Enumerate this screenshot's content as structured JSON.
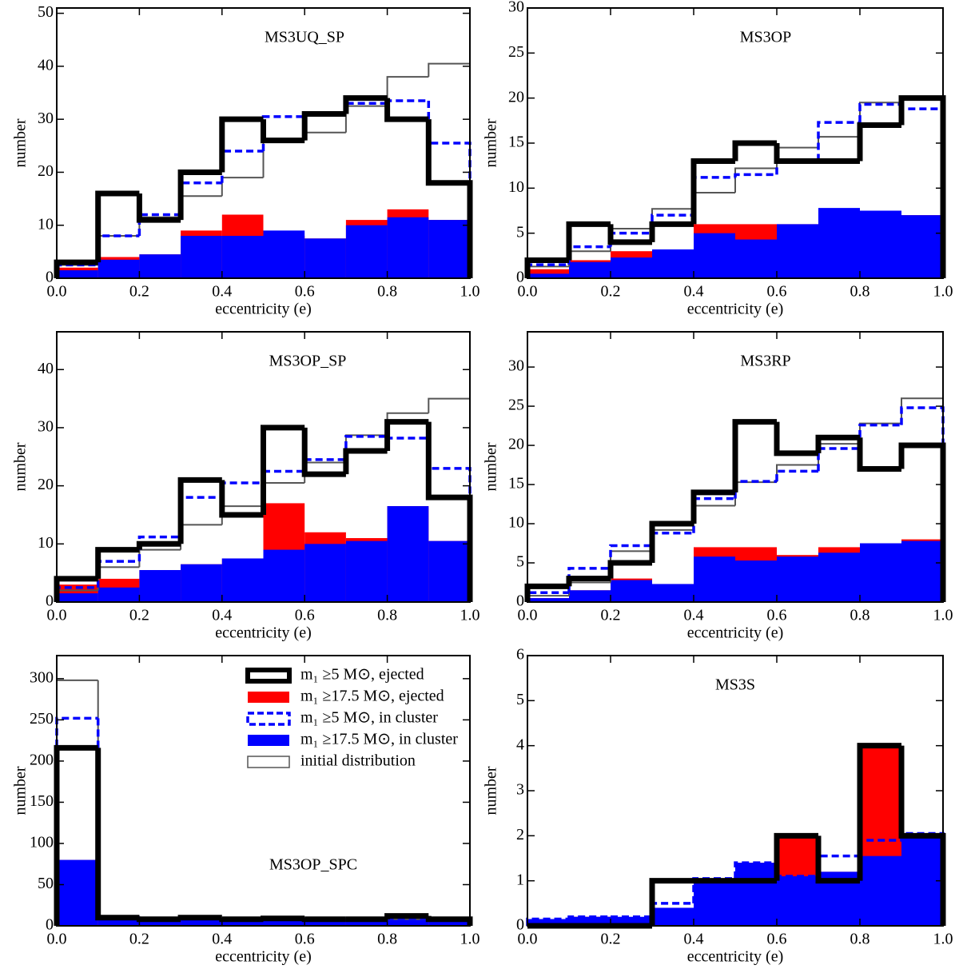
{
  "chart_data": [
    {
      "type": "histogram",
      "title": "MS3UQ_SP",
      "xlabel": "eccentricity (e)",
      "ylabel": "number",
      "bins": [
        0,
        0.1,
        0.2,
        0.3,
        0.4,
        0.5,
        0.6,
        0.7,
        0.8,
        0.9,
        1
      ],
      "xlim": [
        0,
        1
      ],
      "xticks": [
        {
          "value": 0,
          "label": "0.0"
        },
        0.2,
        0.4,
        0.6,
        0.8,
        {
          "value": 1,
          "label": "1.0"
        }
      ],
      "ylim": [
        0,
        51
      ],
      "yticks": [
        0,
        10,
        20,
        30,
        40,
        50
      ],
      "series": [
        {
          "color": "#000000",
          "style": "thick",
          "values": [
            3,
            16,
            11,
            20,
            30,
            26,
            31,
            34,
            30,
            18
          ]
        },
        {
          "color": "#ff0000",
          "style": "filled",
          "values": [
            2,
            4,
            4.5,
            9,
            12,
            8,
            7.5,
            11,
            13,
            11
          ]
        },
        {
          "color": "#0000ff",
          "style": "dashed",
          "values": [
            2.5,
            8,
            12,
            18,
            24,
            30.5,
            31,
            33,
            33.5,
            25.5
          ]
        },
        {
          "color": "#0000ff",
          "style": "filled",
          "values": [
            1.5,
            3.5,
            4.5,
            8,
            8,
            9,
            7.5,
            10,
            11.5,
            11
          ]
        },
        {
          "color": "#555555",
          "style": "thin",
          "values": [
            2.5,
            8,
            11.5,
            15.5,
            19,
            26,
            27.5,
            32.5,
            38,
            40.5
          ]
        }
      ]
    },
    {
      "type": "histogram",
      "title": "MS3OP",
      "xlabel": "eccentricity (e)",
      "ylabel": "number",
      "bins": [
        0,
        0.1,
        0.2,
        0.3,
        0.4,
        0.5,
        0.6,
        0.7,
        0.8,
        0.9,
        1
      ],
      "xlim": [
        0,
        1
      ],
      "xticks": [
        {
          "value": 0,
          "label": "0.0"
        },
        0.2,
        0.4,
        0.6,
        0.8,
        {
          "value": 1,
          "label": "1.0"
        }
      ],
      "ylim": [
        0,
        30
      ],
      "yticks": [
        0,
        5,
        10,
        15,
        20,
        25,
        30
      ],
      "series": [
        {
          "color": "#000000",
          "style": "thick",
          "values": [
            2,
            6,
            4,
            6,
            13,
            15,
            13,
            13,
            17,
            20
          ]
        },
        {
          "color": "#ff0000",
          "style": "filled",
          "values": [
            1,
            2,
            3,
            3,
            6,
            6,
            6,
            6,
            7.5,
            7
          ]
        },
        {
          "color": "#0000ff",
          "style": "dashed",
          "values": [
            1.5,
            3.5,
            5,
            7,
            11.2,
            11.5,
            13,
            17.3,
            19.3,
            18.8
          ]
        },
        {
          "color": "#0000ff",
          "style": "filled",
          "values": [
            0.5,
            1.8,
            2.3,
            3.2,
            5,
            4.3,
            6,
            7.8,
            7.5,
            7
          ]
        },
        {
          "color": "#555555",
          "style": "thin",
          "values": [
            1.3,
            3,
            5.5,
            7.7,
            9.5,
            12.2,
            14.5,
            15.7,
            19.5,
            19.8
          ]
        }
      ]
    },
    {
      "type": "histogram",
      "title": "MS3OP_SP",
      "xlabel": "eccentricity (e)",
      "ylabel": "number",
      "bins": [
        0,
        0.1,
        0.2,
        0.3,
        0.4,
        0.5,
        0.6,
        0.7,
        0.8,
        0.9,
        1
      ],
      "xlim": [
        0,
        1
      ],
      "xticks": [
        {
          "value": 0,
          "label": "0.0"
        },
        0.2,
        0.4,
        0.6,
        0.8,
        {
          "value": 1,
          "label": "1.0"
        }
      ],
      "ylim": [
        0,
        46.5
      ],
      "yticks": [
        0,
        10,
        20,
        30,
        40
      ],
      "series": [
        {
          "color": "#000000",
          "style": "thick",
          "values": [
            4,
            9,
            10,
            21,
            15,
            30,
            22,
            26,
            31,
            18
          ]
        },
        {
          "color": "#ff0000",
          "style": "filled",
          "values": [
            3,
            4,
            5.5,
            6.5,
            7.5,
            17,
            12,
            11,
            16.5,
            10.5
          ]
        },
        {
          "color": "#0000ff",
          "style": "dashed",
          "values": [
            2.5,
            7,
            11.2,
            18,
            20.5,
            22.5,
            24.5,
            28.5,
            28.2,
            23
          ]
        },
        {
          "color": "#0000ff",
          "style": "filled",
          "values": [
            1.5,
            2.5,
            5.5,
            6.5,
            7.5,
            9,
            10,
            10.5,
            16.5,
            10.5
          ]
        },
        {
          "color": "#555555",
          "style": "thin",
          "values": [
            2,
            6,
            9,
            13.3,
            16.5,
            20.5,
            24,
            28.7,
            32.5,
            35
          ]
        }
      ]
    },
    {
      "type": "histogram",
      "title": "MS3RP",
      "xlabel": "eccentricity (e)",
      "ylabel": "number",
      "bins": [
        0,
        0.1,
        0.2,
        0.3,
        0.4,
        0.5,
        0.6,
        0.7,
        0.8,
        0.9,
        1
      ],
      "xlim": [
        0,
        1
      ],
      "xticks": [
        {
          "value": 0,
          "label": "0.0"
        },
        0.2,
        0.4,
        0.6,
        0.8,
        {
          "value": 1,
          "label": "1.0"
        }
      ],
      "ylim": [
        0,
        34.5
      ],
      "yticks": [
        0,
        5,
        10,
        15,
        20,
        25,
        30
      ],
      "series": [
        {
          "color": "#000000",
          "style": "thick",
          "values": [
            2,
            3,
            5,
            10,
            14,
            23,
            19,
            21,
            17,
            20
          ]
        },
        {
          "color": "#ff0000",
          "style": "filled",
          "values": [
            0.5,
            1.5,
            3,
            2.3,
            7,
            7,
            6,
            7,
            7.5,
            8
          ]
        },
        {
          "color": "#0000ff",
          "style": "dashed",
          "values": [
            1.2,
            4.3,
            7.2,
            8.8,
            13.2,
            15.4,
            16.7,
            19.6,
            22.6,
            24.8
          ]
        },
        {
          "color": "#0000ff",
          "style": "filled",
          "values": [
            0.5,
            1.5,
            2.8,
            2.3,
            5.8,
            5.3,
            5.8,
            6.3,
            7.5,
            7.8
          ]
        },
        {
          "color": "#555555",
          "style": "thin",
          "values": [
            0.8,
            2.5,
            6.5,
            9.2,
            12.3,
            15.3,
            17.5,
            20.2,
            22.8,
            26
          ]
        }
      ]
    },
    {
      "type": "histogram",
      "title": "MS3OP_SPC",
      "xlabel": "eccentricity (e)",
      "ylabel": "number",
      "legend": "upper right",
      "bins": [
        0,
        0.1,
        0.2,
        0.3,
        0.4,
        0.5,
        0.6,
        0.7,
        0.8,
        0.9,
        1
      ],
      "xlim": [
        0,
        1
      ],
      "xticks": [
        {
          "value": 0,
          "label": "0.0"
        },
        0.2,
        0.4,
        0.6,
        0.8,
        {
          "value": 1,
          "label": "1.0"
        }
      ],
      "ylim": [
        0,
        328
      ],
      "yticks": [
        0,
        50,
        100,
        150,
        200,
        250,
        300
      ],
      "series": [
        {
          "name": "m₁ ≥5 M⊙, ejected",
          "color": "#000000",
          "style": "thick",
          "values": [
            216,
            10,
            8,
            10,
            8,
            9,
            8,
            8,
            12,
            8
          ]
        },
        {
          "name": "m₁ ≥17.5 M⊙, ejected",
          "color": "#ff0000",
          "style": "filled",
          "values": [
            80,
            10,
            8,
            8,
            7,
            8,
            8,
            8,
            10,
            8
          ]
        },
        {
          "name": "m₁ ≥5 M⊙, in cluster",
          "color": "#0000ff",
          "style": "dashed",
          "values": [
            252,
            11,
            7,
            8,
            6,
            8,
            8,
            8,
            9,
            8
          ]
        },
        {
          "name": "m₁ ≥17.5 M⊙, in cluster",
          "color": "#0000ff",
          "style": "filled",
          "values": [
            80,
            10,
            8,
            8,
            7,
            8,
            8,
            8,
            8,
            8
          ]
        },
        {
          "name": "initial distribution",
          "color": "#555555",
          "style": "thin",
          "values": [
            298,
            12,
            9,
            8,
            8,
            8,
            9,
            9,
            8,
            8
          ]
        }
      ]
    },
    {
      "type": "histogram",
      "title": "MS3S",
      "xlabel": "eccentricity (e)",
      "ylabel": "number",
      "bins": [
        0,
        0.1,
        0.2,
        0.3,
        0.4,
        0.5,
        0.6,
        0.7,
        0.8,
        0.9,
        1
      ],
      "xlim": [
        0,
        1
      ],
      "xticks": [
        {
          "value": 0,
          "label": "0.0"
        },
        0.2,
        0.4,
        0.6,
        0.8,
        {
          "value": 1,
          "label": "1.0"
        }
      ],
      "ylim": [
        0,
        6
      ],
      "yticks": [
        0,
        1,
        2,
        3,
        4,
        5,
        6
      ],
      "series": [
        {
          "color": "#000000",
          "style": "thick",
          "values": [
            0,
            0,
            0,
            1,
            1,
            1,
            2,
            1,
            4,
            2
          ]
        },
        {
          "color": "#ff0000",
          "style": "filled",
          "values": [
            0.15,
            0.2,
            0,
            0.4,
            1.05,
            1.4,
            1.95,
            1.2,
            3.95,
            1.95
          ]
        },
        {
          "color": "#0000ff",
          "style": "dashed",
          "values": [
            0.15,
            0.2,
            0.2,
            0.5,
            1.05,
            1.4,
            1.1,
            1.55,
            1.9,
            2.05
          ]
        },
        {
          "color": "#0000ff",
          "style": "filled",
          "values": [
            0.15,
            0.2,
            0.2,
            0.4,
            1.05,
            1.4,
            1.1,
            1.2,
            1.55,
            1.95
          ]
        }
      ]
    }
  ]
}
